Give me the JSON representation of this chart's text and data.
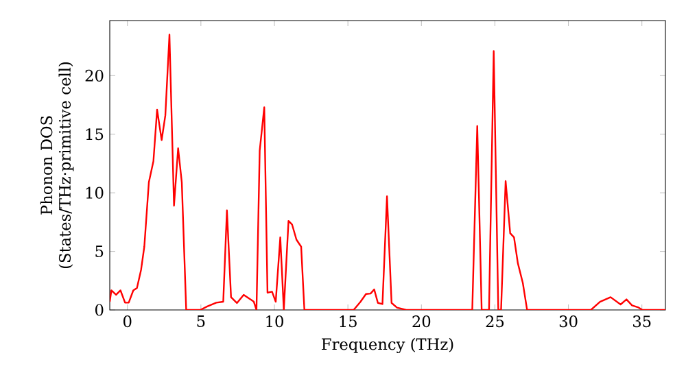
{
  "chart_data": {
    "type": "line",
    "xlabel": "Frequency (THz)",
    "ylabel": "Phonon DOS (States/THz·primitive cell)",
    "xlim": [
      -1.2,
      36.6
    ],
    "ylim": [
      0,
      24.7
    ],
    "xticks": [
      0,
      5,
      10,
      15,
      20,
      25,
      30,
      35
    ],
    "yticks": [
      0,
      5,
      10,
      15,
      20
    ],
    "grid": false,
    "series": [
      {
        "color": "#ff0000",
        "x": [
          -1.2,
          -1.09,
          -0.77,
          -0.47,
          -0.16,
          0.09,
          0.4,
          0.65,
          0.93,
          1.15,
          1.46,
          1.77,
          2.02,
          2.33,
          2.58,
          2.86,
          3.17,
          3.45,
          3.7,
          4.0,
          4.96,
          5.43,
          6.05,
          6.52,
          6.77,
          7.05,
          7.45,
          7.91,
          8.38,
          8.6,
          8.78,
          9.0,
          9.31,
          9.53,
          9.84,
          10.09,
          10.4,
          10.64,
          10.96,
          11.2,
          11.5,
          11.82,
          12.04,
          15.39,
          15.86,
          16.23,
          16.54,
          16.79,
          17.04,
          17.35,
          17.66,
          17.97,
          18.34,
          18.97,
          23.46,
          23.8,
          24.1,
          24.6,
          24.92,
          25.23,
          25.42,
          25.73,
          26.04,
          26.3,
          26.56,
          26.9,
          27.19,
          31.53,
          32.15,
          32.87,
          33.55,
          33.95,
          34.33,
          34.73,
          35.04,
          36.6
        ],
        "values": [
          0.7,
          1.67,
          1.29,
          1.67,
          0.62,
          0.62,
          1.67,
          1.87,
          3.43,
          5.4,
          10.9,
          12.7,
          17.1,
          14.5,
          16.6,
          23.5,
          8.9,
          13.8,
          10.9,
          0,
          0,
          0.3,
          0.62,
          0.7,
          8.5,
          1.09,
          0.59,
          1.29,
          0.9,
          0.7,
          0,
          13.6,
          17.3,
          1.48,
          1.56,
          0.7,
          6.2,
          0,
          7.6,
          7.3,
          6.0,
          5.4,
          0,
          0,
          0.7,
          1.36,
          1.4,
          1.75,
          0.6,
          0.5,
          9.7,
          0.6,
          0.2,
          0,
          0,
          15.7,
          0,
          0,
          22.1,
          0,
          0,
          11.0,
          6.55,
          6.2,
          4.0,
          2.3,
          0,
          0,
          0.7,
          1.09,
          0.47,
          0.9,
          0.39,
          0.23,
          0,
          0
        ]
      }
    ]
  }
}
